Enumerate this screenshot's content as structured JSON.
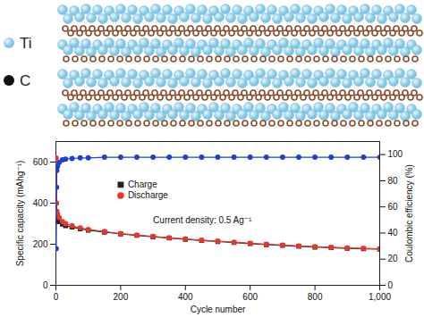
{
  "structure": {
    "legend": [
      {
        "label": "Ti",
        "color": "#7cc6e6"
      },
      {
        "label": "C",
        "color": "#111111"
      }
    ]
  },
  "chart_data": {
    "type": "line",
    "x_label": "Cycle number",
    "y_label": "Specific capacity (mAhg⁻¹)",
    "y2_label": "Coulombic efficiency (%)",
    "annotation": "Current density: 0.5 Ag⁻¹",
    "x": [
      1,
      2,
      3,
      5,
      10,
      20,
      30,
      50,
      75,
      100,
      150,
      200,
      250,
      300,
      350,
      400,
      450,
      500,
      550,
      600,
      650,
      700,
      750,
      800,
      850,
      900,
      950,
      1000
    ],
    "series": [
      {
        "name": "Charge",
        "color": "#222222",
        "marker": "square",
        "values": [
          350,
          330,
          320,
          315,
          310,
          298,
          290,
          283,
          275,
          268,
          259,
          250,
          243,
          236,
          230,
          224,
          218,
          213,
          208,
          203,
          198,
          194,
          190,
          186,
          183,
          180,
          178,
          176
        ]
      },
      {
        "name": "Discharge",
        "color": "#e8372c",
        "marker": "circle",
        "values": [
          620,
          400,
          360,
          345,
          330,
          310,
          300,
          290,
          280,
          272,
          262,
          252,
          245,
          238,
          232,
          226,
          220,
          215,
          210,
          205,
          200,
          196,
          192,
          188,
          185,
          182,
          180,
          178
        ]
      },
      {
        "color": "#1f3fd6",
        "marker": "circle",
        "axis": "y2",
        "values": [
          28,
          75,
          88,
          91,
          94,
          96,
          96.5,
          97,
          97.5,
          97.5,
          98,
          98,
          98,
          98,
          98,
          98,
          98,
          98,
          98,
          98,
          98,
          98,
          98,
          98,
          98,
          98,
          98,
          98
        ]
      }
    ],
    "xlim": [
      0,
      1000
    ],
    "xticks": [
      0,
      200,
      400,
      600,
      800,
      1000
    ],
    "ylim": [
      0,
      700
    ],
    "yticks": [
      0,
      200,
      400,
      600
    ],
    "y2lim": [
      0,
      110
    ],
    "y2ticks": [
      0,
      20,
      40,
      60,
      80,
      100
    ],
    "legend": "top"
  }
}
